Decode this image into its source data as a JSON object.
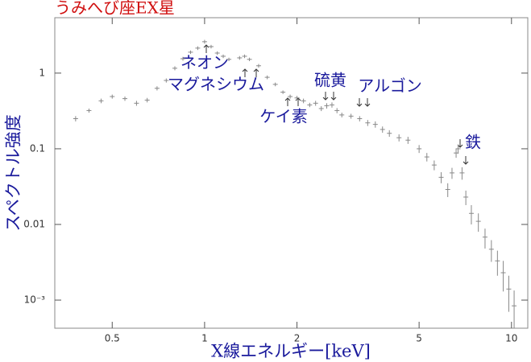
{
  "chart_data": {
    "type": "scatter",
    "title": "うみへび座EX星",
    "x_label": "X線エネルギー[keV]",
    "y_label": "スペクトル強度",
    "annotations": [
      "ネオン",
      "マグネシウム",
      "ケイ素",
      "硫黄",
      "アルゴン",
      "鉄"
    ],
    "log_x": true,
    "log_y": true,
    "color": "#888888",
    "xlim": [
      0.325,
      11.3
    ],
    "ylim": [
      0.000425,
      5.4
    ],
    "xticks": [
      0.5,
      1,
      2,
      5,
      10
    ],
    "yticks": [
      {
        "value": 0.001,
        "label": "10⁻³"
      },
      0.01,
      0.1,
      1
    ],
    "x": [
      0.38,
      0.42,
      0.46,
      0.5,
      0.55,
      0.6,
      0.65,
      0.7,
      0.75,
      0.8,
      0.85,
      0.9,
      0.95,
      1.0,
      1.05,
      1.1,
      1.15,
      1.2,
      1.3,
      1.35,
      1.4,
      1.5,
      1.6,
      1.7,
      1.8,
      1.9,
      2.0,
      2.1,
      2.2,
      2.3,
      2.4,
      2.5,
      2.6,
      2.7,
      2.8,
      3.0,
      3.2,
      3.4,
      3.6,
      3.8,
      4.0,
      4.3,
      4.6,
      5.0,
      5.3,
      5.6,
      5.9,
      6.2,
      6.4,
      6.6,
      6.7,
      6.9,
      7.1,
      7.4,
      7.8,
      8.2,
      8.6,
      9.0,
      9.4,
      9.8,
      10.2
    ],
    "values": [
      0.25,
      0.32,
      0.43,
      0.49,
      0.46,
      0.4,
      0.44,
      0.63,
      0.8,
      1.16,
      1.55,
      1.89,
      2.14,
      2.6,
      2.24,
      1.84,
      1.67,
      1.52,
      1.59,
      1.67,
      1.52,
      1.25,
      0.88,
      0.71,
      0.56,
      0.49,
      0.47,
      0.43,
      0.38,
      0.4,
      0.34,
      0.37,
      0.38,
      0.32,
      0.28,
      0.27,
      0.25,
      0.22,
      0.21,
      0.18,
      0.16,
      0.14,
      0.13,
      0.1,
      0.078,
      0.061,
      0.042,
      0.029,
      0.048,
      0.088,
      0.1,
      0.048,
      0.023,
      0.014,
      0.011,
      0.0068,
      0.0047,
      0.0033,
      0.0023,
      0.0014,
      0.00084
    ],
    "errors": [
      0.02,
      0.02,
      0.03,
      0.03,
      0.03,
      0.03,
      0.03,
      0.04,
      0.05,
      0.07,
      0.09,
      0.1,
      0.12,
      0.15,
      0.12,
      0.1,
      0.09,
      0.08,
      0.09,
      0.09,
      0.08,
      0.07,
      0.05,
      0.04,
      0.03,
      0.03,
      0.03,
      0.03,
      0.025,
      0.03,
      0.025,
      0.03,
      0.03,
      0.025,
      0.02,
      0.02,
      0.02,
      0.02,
      0.02,
      0.017,
      0.016,
      0.015,
      0.014,
      0.012,
      0.01,
      0.009,
      0.007,
      0.006,
      0.008,
      0.012,
      0.014,
      0.009,
      0.005,
      0.004,
      0.003,
      0.002,
      0.0015,
      0.0012,
      0.001,
      0.0007,
      0.0005
    ]
  }
}
